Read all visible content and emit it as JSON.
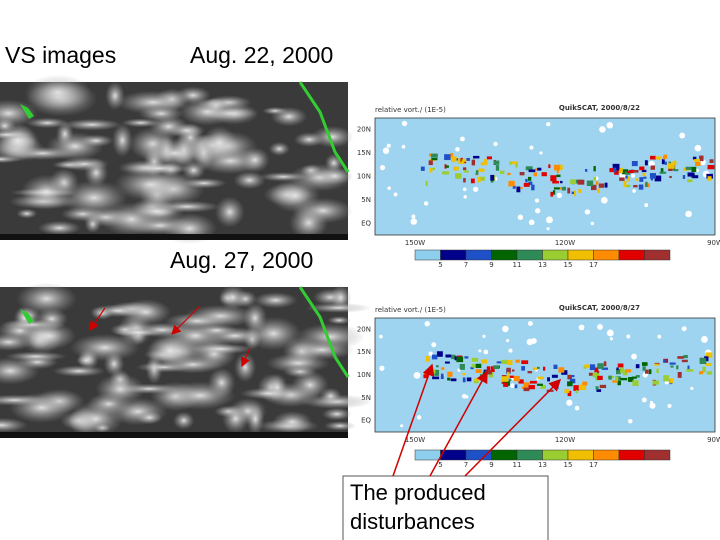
{
  "slide_title": "VS images",
  "panels": [
    {
      "date": "Aug. 22, 2000",
      "map_title": "QuikSCAT, 2000/8/22"
    },
    {
      "date": "Aug. 27, 2000",
      "map_title": "QuikSCAT, 2000/8/27"
    }
  ],
  "map_subtitle": "relative vort./ (1E-5)",
  "map_lat_labels": [
    "20N",
    "15N",
    "10N",
    "5N",
    "EQ"
  ],
  "map_lon_labels": [
    "150W",
    "120W",
    "90W"
  ],
  "colorbar_labels": [
    "5",
    "7",
    "9",
    "11",
    "13",
    "15",
    "17"
  ],
  "callout": [
    "The produced",
    "disturbances"
  ]
}
